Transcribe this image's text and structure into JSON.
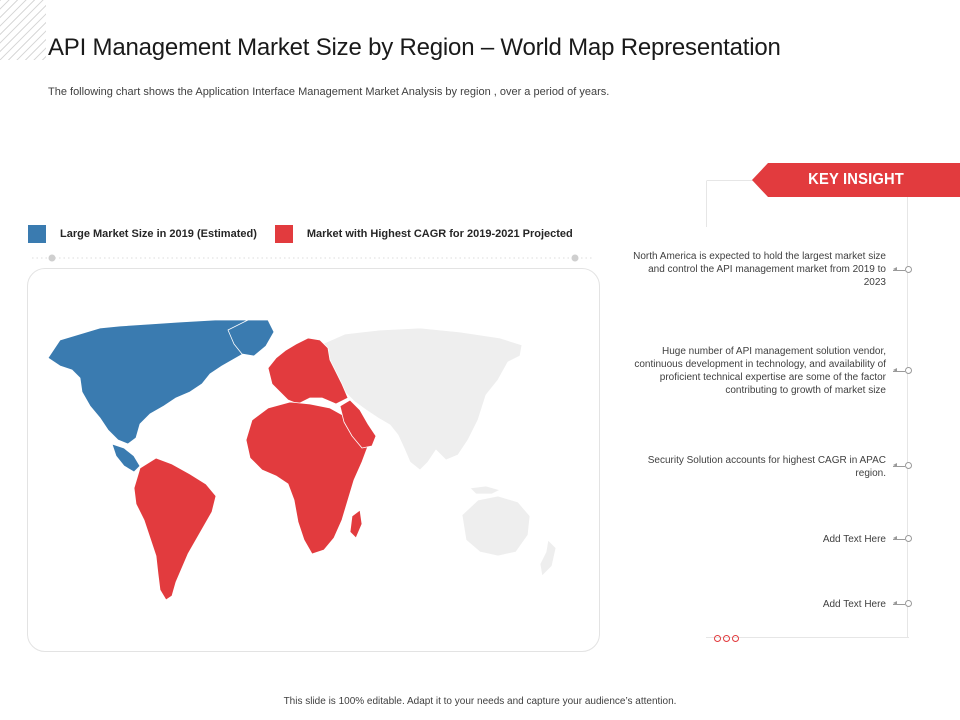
{
  "slide": {
    "title": "API Management Market Size by Region – World Map Representation",
    "subtitle": "The following chart shows the Application Interface Management Market Analysis by region , over a period of years.",
    "footer": "This slide is 100% editable. Adapt it to your needs and capture your audience’s attention."
  },
  "legend": [
    {
      "label": "Large Market Size in 2019 (Estimated)",
      "color": "#3a7bb0"
    },
    {
      "label": "Market with Highest CAGR for 2019-2021 Projected",
      "color": "#e23b3e"
    }
  ],
  "map": {
    "regions": [
      {
        "name": "North America",
        "category": "large-market",
        "color": "#3a7bb0"
      },
      {
        "name": "South America",
        "category": "highest-cagr",
        "color": "#e23b3e"
      },
      {
        "name": "Europe",
        "category": "highest-cagr",
        "color": "#e23b3e"
      },
      {
        "name": "Africa",
        "category": "highest-cagr",
        "color": "#e23b3e"
      },
      {
        "name": "Middle East",
        "category": "highest-cagr",
        "color": "#e23b3e"
      },
      {
        "name": "Asia",
        "category": "none",
        "color": "#eeeeee"
      },
      {
        "name": "Oceania",
        "category": "none",
        "color": "#eeeeee"
      }
    ]
  },
  "key_insight": {
    "heading": "KEY INSIGHT",
    "items": [
      "North America is expected to hold the largest market size and control the API management market from 2019 to 2023",
      "Huge number of API management solution vendor, continuous development in technology, and availability  of proficient technical  expertise are some of the factor contributing to growth of market size",
      "Security Solution accounts for highest CAGR in APAC region.",
      "Add Text Here",
      "Add Text Here"
    ]
  }
}
